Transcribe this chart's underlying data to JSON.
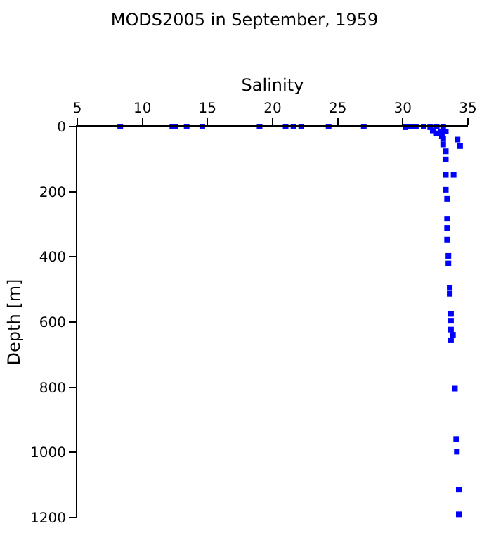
{
  "chart_data": {
    "type": "scatter",
    "title": "MODS2005 in September, 1959",
    "xlabel": "Salinity",
    "ylabel": "Depth [m]",
    "xlim": [
      5,
      35
    ],
    "xticks": [
      5,
      10,
      15,
      20,
      25,
      30,
      35
    ],
    "ylim": [
      1200,
      0
    ],
    "yticks": [
      0,
      200,
      400,
      600,
      800,
      1000,
      1200
    ],
    "marker": "square",
    "series": [
      {
        "color": "#0000ff",
        "x": [
          8.3,
          12.3,
          12.5,
          13.4,
          14.6,
          19.0,
          21.0,
          21.6,
          22.2,
          24.3,
          27.0,
          30.2,
          30.6,
          31.0,
          31.6,
          32.1,
          32.6,
          33.1,
          32.3,
          32.9,
          33.3,
          32.6,
          33.0,
          33.1,
          34.2,
          34.4,
          33.1,
          33.3,
          33.3,
          33.3,
          33.9,
          33.3,
          33.4,
          33.4,
          33.4,
          33.4,
          33.5,
          33.5,
          33.6,
          33.6,
          33.7,
          33.7,
          33.7,
          33.85,
          33.7,
          34.0,
          34.1,
          34.15,
          34.3,
          34.3
        ],
        "values": [
          0,
          0,
          0,
          0,
          0,
          0,
          0,
          0,
          0,
          0,
          0,
          2,
          0,
          0,
          0,
          2,
          0,
          0,
          12,
          15,
          15,
          21,
          30,
          38,
          40,
          60,
          55,
          76,
          101,
          148,
          148,
          194,
          222,
          283,
          311,
          347,
          397,
          420,
          495,
          513,
          575,
          596,
          623,
          639,
          656,
          804,
          959,
          998,
          1114,
          1190
        ]
      }
    ]
  }
}
